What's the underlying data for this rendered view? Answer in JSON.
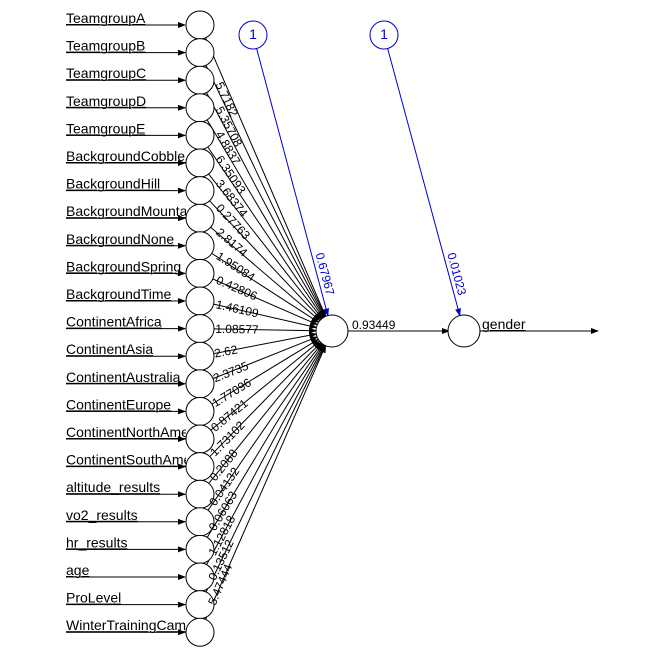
{
  "network": {
    "inputs": [
      {
        "label": "TeamgroupA",
        "weight": ""
      },
      {
        "label": "TeamgroupB",
        "weight": "5.7182"
      },
      {
        "label": "TeamgroupC",
        "weight": "5.35708"
      },
      {
        "label": "TeamgroupD",
        "weight": "4.8837"
      },
      {
        "label": "TeamgroupE",
        "weight": "6.35093"
      },
      {
        "label": "BackgroundCobblestones",
        "weight": "3.68374"
      },
      {
        "label": "BackgroundHill",
        "weight": "0.27763"
      },
      {
        "label": "BackgroundMountain",
        "weight": "2.8174"
      },
      {
        "label": "BackgroundNone",
        "weight": "1.95084"
      },
      {
        "label": "BackgroundSpring",
        "weight": "0.42806"
      },
      {
        "label": "BackgroundTime",
        "weight": "1.46109"
      },
      {
        "label": "ContinentAfrica",
        "weight": "1.08577"
      },
      {
        "label": "ContinentAsia",
        "weight": "2.62"
      },
      {
        "label": "ContinentAustralia",
        "weight": "2.3735"
      },
      {
        "label": "ContinentEurope",
        "weight": "1.77096"
      },
      {
        "label": "ContinentNorthAmerica",
        "weight": "0.87421"
      },
      {
        "label": "ContinentSouthAmerica",
        "weight": "1.73102"
      },
      {
        "label": "altitude_results",
        "weight": "0.2088"
      },
      {
        "label": "vo2_results",
        "weight": "0.04132"
      },
      {
        "label": "hr_results",
        "weight": "0.06063"
      },
      {
        "label": "age",
        "weight": "1.12818"
      },
      {
        "label": "ProLevel",
        "weight": "0.13512"
      },
      {
        "label": "WinterTrainingCamp",
        "weight": "5.47444"
      }
    ],
    "hidden_bias": {
      "text": "1",
      "weight": "0.67967"
    },
    "output_bias": {
      "text": "1",
      "weight": "0.01023"
    },
    "hidden_to_output_weight": "0.93449",
    "output_label": "gender",
    "colors": {
      "edge": "#000000",
      "bias": "#0000cc"
    }
  }
}
